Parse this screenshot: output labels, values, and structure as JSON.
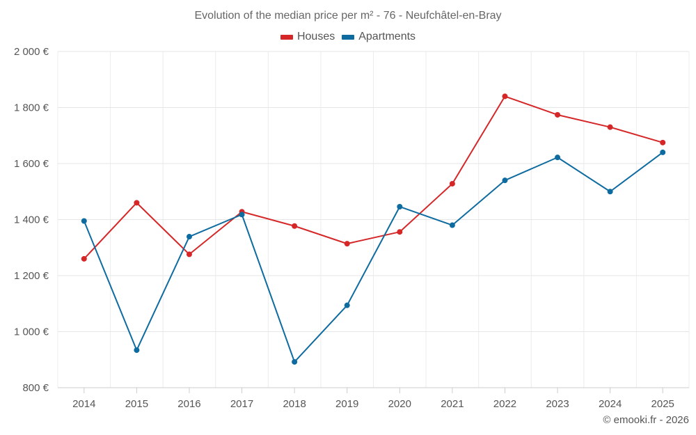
{
  "chart_data": {
    "type": "line",
    "title": "Evolution of the median price per m² - 76 - Neufchâtel-en-Bray",
    "xlabel": "",
    "ylabel": "",
    "categories": [
      "2014",
      "2015",
      "2016",
      "2017",
      "2018",
      "2019",
      "2020",
      "2021",
      "2022",
      "2023",
      "2024",
      "2025"
    ],
    "ylim": [
      800,
      2000
    ],
    "yticks": [
      800,
      1000,
      1200,
      1400,
      1600,
      1800,
      2000
    ],
    "ytick_labels": [
      "800 €",
      "1 000 €",
      "1 200 €",
      "1 400 €",
      "1 600 €",
      "1 800 €",
      "2 000 €"
    ],
    "grid": true,
    "legend_position": "top-center",
    "series": [
      {
        "name": "Houses",
        "color": "#d62728",
        "values": [
          1260,
          1460,
          1276,
          1428,
          1377,
          1314,
          1356,
          1528,
          1840,
          1774,
          1730,
          1675
        ]
      },
      {
        "name": "Apartments",
        "color": "#0e6ba0",
        "values": [
          1395,
          934,
          1339,
          1418,
          892,
          1094,
          1446,
          1380,
          1540,
          1622,
          1500,
          1640
        ]
      }
    ]
  },
  "credit": "© emooki.fr - 2026"
}
